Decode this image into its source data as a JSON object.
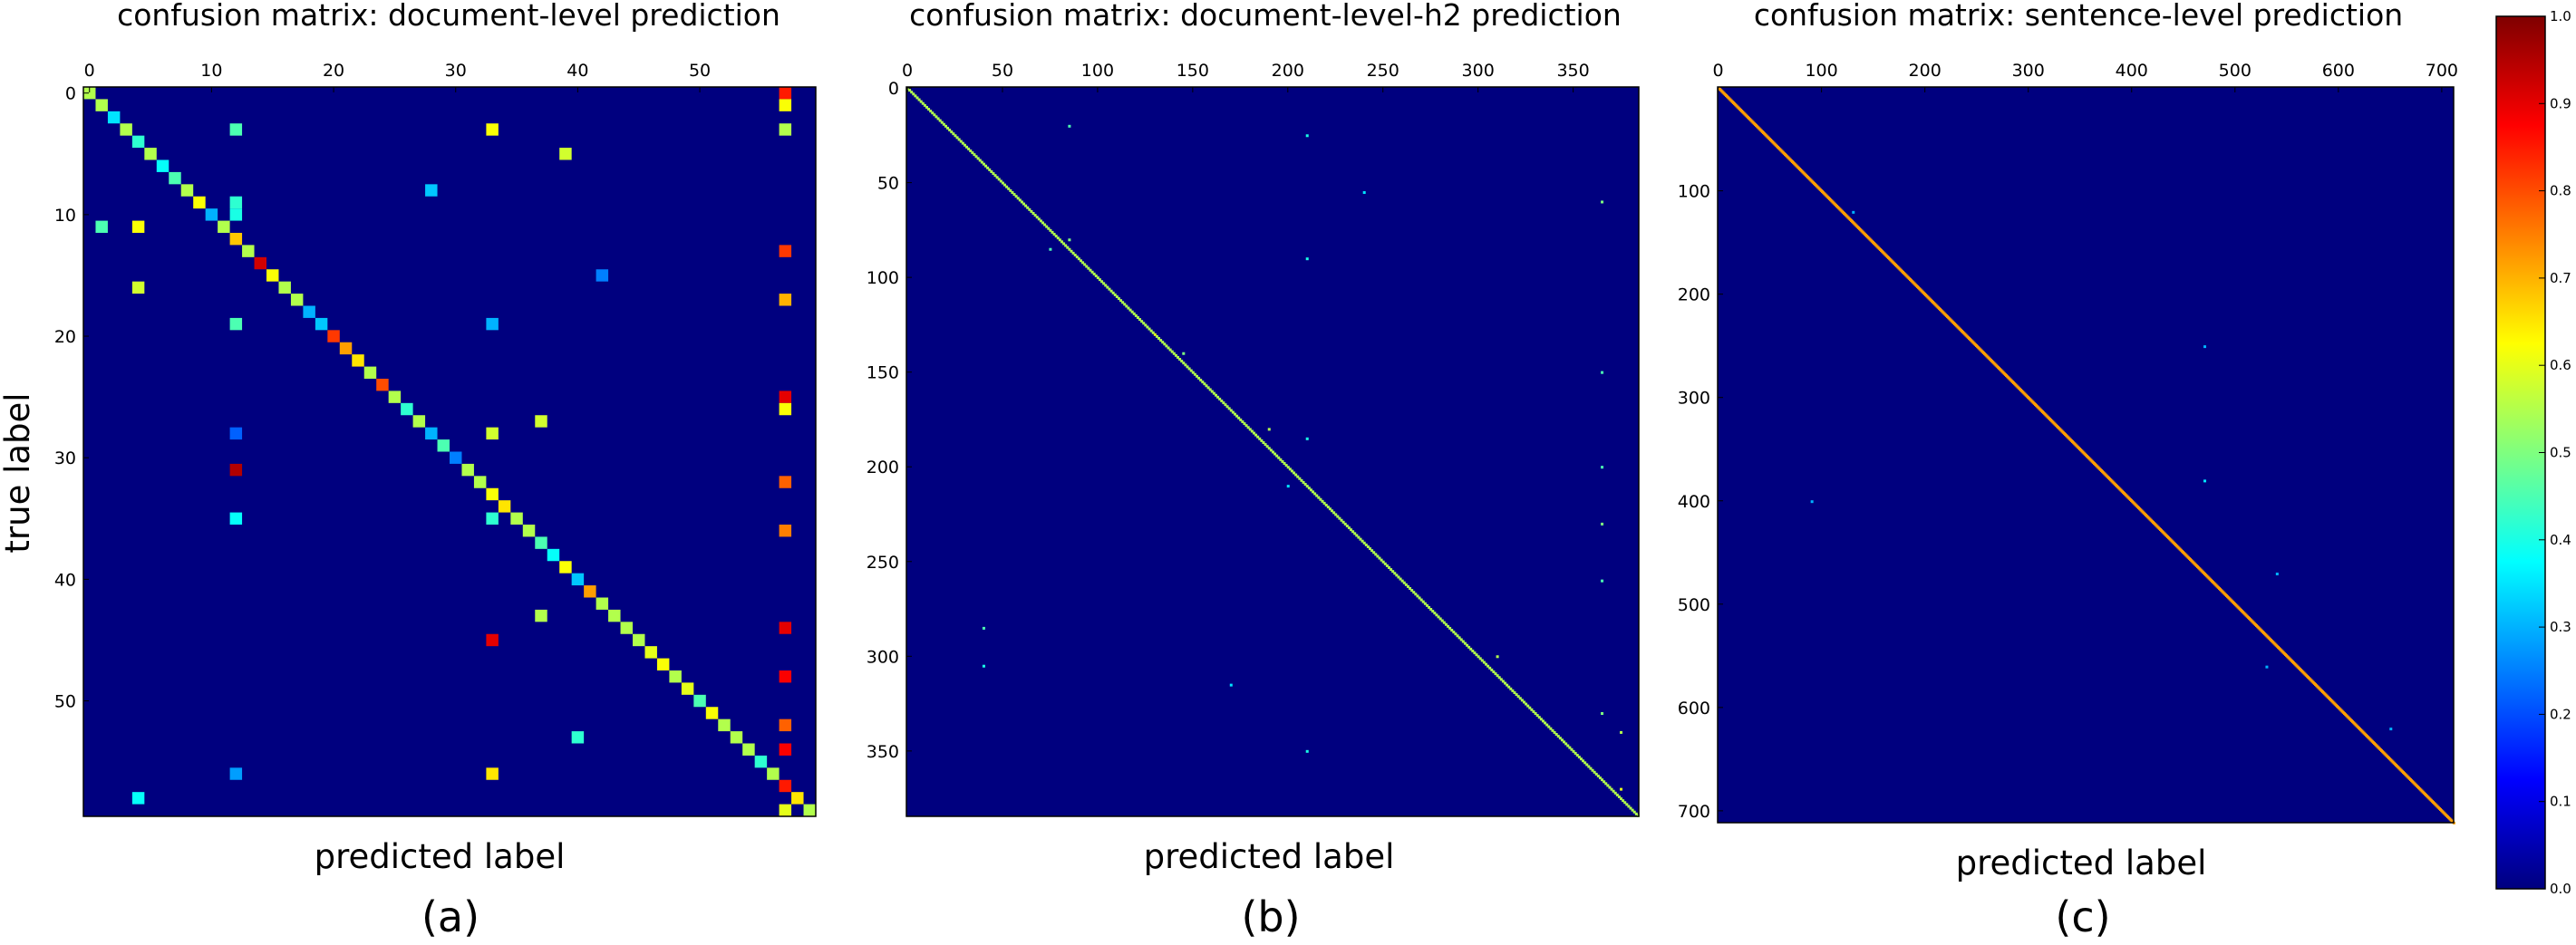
{
  "figure": {
    "ylabel": "true label",
    "colormap": "jet",
    "colormap_stops": [
      "#00007f",
      "#0000ff",
      "#007fff",
      "#00ffff",
      "#7fff7f",
      "#ffff00",
      "#ff7f00",
      "#ff0000",
      "#7f0000"
    ],
    "background_color": "#00007f"
  },
  "colorbar": {
    "range": [
      0.0,
      1.0
    ],
    "tick_values": [
      0.0,
      0.1,
      0.2,
      0.3,
      0.4,
      0.5,
      0.6,
      0.7,
      0.8,
      0.9,
      1.0
    ],
    "tick_labels": [
      "0.0",
      "0.1",
      "0.2",
      "0.3",
      "0.4",
      "0.5",
      "0.6",
      "0.7",
      "0.8",
      "0.9",
      "1.0"
    ]
  },
  "chart_data": [
    {
      "type": "heatmap",
      "title": "confusion matrix: document-level prediction",
      "xlabel": "predicted label",
      "ylabel": "true label",
      "caption": "(a)",
      "n_classes": 60,
      "xticks": [
        0,
        10,
        20,
        30,
        40,
        50
      ],
      "yticks": [
        0,
        10,
        20,
        30,
        40,
        50
      ],
      "diagonal": {
        "from": 0,
        "to": 59,
        "value": 0.55
      },
      "cells": [
        [
          0,
          57,
          0.85
        ],
        [
          1,
          57,
          0.62
        ],
        [
          2,
          2,
          0.35
        ],
        [
          3,
          12,
          0.45
        ],
        [
          3,
          33,
          0.62
        ],
        [
          3,
          57,
          0.55
        ],
        [
          4,
          4,
          0.42
        ],
        [
          5,
          39,
          0.58
        ],
        [
          6,
          6,
          0.38
        ],
        [
          7,
          7,
          0.45
        ],
        [
          8,
          8,
          0.55
        ],
        [
          8,
          28,
          0.32
        ],
        [
          9,
          9,
          0.62
        ],
        [
          9,
          12,
          0.42
        ],
        [
          10,
          10,
          0.3
        ],
        [
          10,
          12,
          0.4
        ],
        [
          11,
          1,
          0.45
        ],
        [
          11,
          4,
          0.62
        ],
        [
          12,
          12,
          0.68
        ],
        [
          13,
          57,
          0.82
        ],
        [
          14,
          14,
          0.92
        ],
        [
          15,
          15,
          0.62
        ],
        [
          15,
          42,
          0.25
        ],
        [
          16,
          4,
          0.58
        ],
        [
          17,
          57,
          0.7
        ],
        [
          18,
          18,
          0.3
        ],
        [
          19,
          12,
          0.45
        ],
        [
          19,
          19,
          0.32
        ],
        [
          19,
          33,
          0.3
        ],
        [
          20,
          20,
          0.82
        ],
        [
          21,
          21,
          0.72
        ],
        [
          22,
          22,
          0.65
        ],
        [
          24,
          24,
          0.8
        ],
        [
          25,
          57,
          0.9
        ],
        [
          26,
          26,
          0.42
        ],
        [
          26,
          57,
          0.62
        ],
        [
          27,
          37,
          0.58
        ],
        [
          28,
          12,
          0.22
        ],
        [
          28,
          28,
          0.3
        ],
        [
          28,
          33,
          0.58
        ],
        [
          29,
          29,
          0.45
        ],
        [
          30,
          30,
          0.25
        ],
        [
          31,
          12,
          0.95
        ],
        [
          32,
          57,
          0.78
        ],
        [
          33,
          33,
          0.62
        ],
        [
          34,
          34,
          0.65
        ],
        [
          35,
          12,
          0.38
        ],
        [
          35,
          33,
          0.42
        ],
        [
          36,
          57,
          0.75
        ],
        [
          37,
          37,
          0.45
        ],
        [
          38,
          38,
          0.38
        ],
        [
          39,
          39,
          0.62
        ],
        [
          40,
          40,
          0.32
        ],
        [
          41,
          41,
          0.72
        ],
        [
          43,
          37,
          0.55
        ],
        [
          44,
          57,
          0.9
        ],
        [
          45,
          33,
          0.9
        ],
        [
          46,
          46,
          0.6
        ],
        [
          47,
          47,
          0.62
        ],
        [
          48,
          57,
          0.88
        ],
        [
          49,
          49,
          0.6
        ],
        [
          50,
          50,
          0.45
        ],
        [
          51,
          51,
          0.62
        ],
        [
          52,
          57,
          0.78
        ],
        [
          53,
          40,
          0.42
        ],
        [
          54,
          57,
          0.88
        ],
        [
          55,
          55,
          0.42
        ],
        [
          56,
          33,
          0.65
        ],
        [
          56,
          12,
          0.28
        ],
        [
          57,
          57,
          0.85
        ],
        [
          58,
          4,
          0.38
        ],
        [
          58,
          58,
          0.65
        ],
        [
          59,
          57,
          0.6
        ]
      ]
    },
    {
      "type": "heatmap",
      "title": "confusion matrix: document-level-h2 prediction",
      "xlabel": "predicted label",
      "ylabel": "",
      "caption": "(b)",
      "n_classes": 385,
      "xticks": [
        0,
        50,
        100,
        150,
        200,
        250,
        300,
        350
      ],
      "yticks": [
        0,
        50,
        100,
        150,
        200,
        250,
        300,
        350
      ],
      "diagonal": {
        "from": 0,
        "to": 384,
        "value": 0.55
      },
      "cells": [
        [
          20,
          85,
          0.45
        ],
        [
          25,
          210,
          0.4
        ],
        [
          55,
          240,
          0.35
        ],
        [
          60,
          365,
          0.5
        ],
        [
          80,
          85,
          0.5
        ],
        [
          85,
          75,
          0.45
        ],
        [
          90,
          210,
          0.4
        ],
        [
          130,
          130,
          0.6
        ],
        [
          140,
          145,
          0.5
        ],
        [
          150,
          365,
          0.45
        ],
        [
          180,
          190,
          0.55
        ],
        [
          185,
          210,
          0.4
        ],
        [
          200,
          365,
          0.45
        ],
        [
          210,
          200,
          0.35
        ],
        [
          230,
          365,
          0.5
        ],
        [
          260,
          365,
          0.45
        ],
        [
          285,
          40,
          0.45
        ],
        [
          305,
          40,
          0.4
        ],
        [
          300,
          310,
          0.55
        ],
        [
          315,
          170,
          0.35
        ],
        [
          330,
          365,
          0.5
        ],
        [
          340,
          375,
          0.55
        ],
        [
          350,
          210,
          0.4
        ],
        [
          370,
          375,
          0.6
        ]
      ]
    },
    {
      "type": "heatmap",
      "title": "confusion matrix: sentence-level prediction",
      "xlabel": "predicted label",
      "ylabel": "",
      "caption": "(c)",
      "n_classes": 712,
      "xticks": [
        0,
        100,
        200,
        300,
        400,
        500,
        600,
        700
      ],
      "yticks": [
        100,
        200,
        300,
        400,
        500,
        600,
        700
      ],
      "diagonal": {
        "from": 0,
        "to": 711,
        "value": 0.72
      },
      "cells": [
        [
          120,
          130,
          0.3
        ],
        [
          250,
          470,
          0.3
        ],
        [
          380,
          470,
          0.35
        ],
        [
          400,
          90,
          0.3
        ],
        [
          470,
          540,
          0.3
        ],
        [
          560,
          530,
          0.3
        ],
        [
          620,
          650,
          0.3
        ]
      ]
    }
  ]
}
